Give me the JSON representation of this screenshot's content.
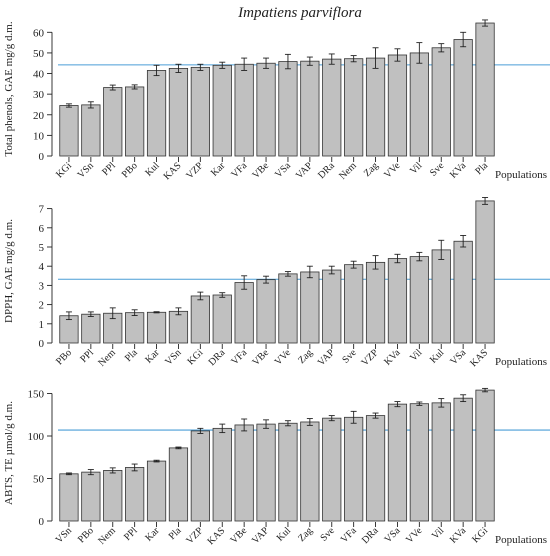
{
  "title": "Impatiens parviflora",
  "chart_data": [
    {
      "type": "bar",
      "ylabel": "Total phenols, GAE mg/g d.m.",
      "xlabel": "Populations",
      "ylim": [
        0,
        65
      ],
      "yticks": [
        0,
        10,
        20,
        30,
        40,
        50,
        60
      ],
      "reference_line": 44.2,
      "categories": [
        "KGi",
        "VSn",
        "PPl",
        "PBo",
        "Kul",
        "KAS",
        "VZP",
        "Kar",
        "VFa",
        "VBe",
        "VSa",
        "VAP",
        "DRa",
        "Nem",
        "Zag",
        "VVe",
        "Vil",
        "Sve",
        "KVa",
        "Pla"
      ],
      "values": [
        24.5,
        24.8,
        33.2,
        33.5,
        41.5,
        42.5,
        43,
        44,
        44.5,
        45,
        45.8,
        46,
        47,
        47.2,
        47.5,
        49,
        50,
        52.5,
        56.5,
        64.5
      ],
      "errors": [
        0.8,
        1.5,
        1.2,
        1.0,
        2.5,
        2.0,
        1.5,
        1.5,
        3.0,
        2.5,
        3.5,
        2.0,
        2.5,
        1.5,
        5.0,
        3.0,
        5.0,
        2.0,
        3.5,
        1.5
      ]
    },
    {
      "type": "bar",
      "ylabel": "DPPH, GAE mg/g d.m.",
      "xlabel": "Populations",
      "ylim": [
        0,
        7.5
      ],
      "yticks": [
        0,
        1,
        2,
        3,
        4,
        5,
        6,
        7
      ],
      "reference_line": 3.32,
      "categories": [
        "PBo",
        "PPl",
        "Nem",
        "Pla",
        "Kar",
        "VSn",
        "KGi",
        "DRa",
        "VFa",
        "VBe",
        "VVe",
        "Zag",
        "VAP",
        "Sve",
        "VZP",
        "KVa",
        "Vil",
        "Kul",
        "VSa",
        "KAS"
      ],
      "values": [
        1.42,
        1.5,
        1.55,
        1.58,
        1.6,
        1.65,
        2.45,
        2.5,
        3.15,
        3.3,
        3.6,
        3.7,
        3.8,
        4.08,
        4.2,
        4.4,
        4.5,
        4.85,
        5.3,
        7.4
      ],
      "errors": [
        0.2,
        0.12,
        0.28,
        0.15,
        0.03,
        0.18,
        0.2,
        0.12,
        0.35,
        0.18,
        0.12,
        0.3,
        0.2,
        0.18,
        0.35,
        0.22,
        0.22,
        0.5,
        0.3,
        0.18
      ]
    },
    {
      "type": "bar",
      "ylabel": "ABTS, TE µmol/g d.m.",
      "xlabel": "Populations",
      "ylim": [
        0,
        160
      ],
      "yticks": [
        0,
        50,
        100,
        150
      ],
      "reference_line": 107,
      "categories": [
        "VSn",
        "PBo",
        "Nem",
        "PPl",
        "Kar",
        "Pla",
        "VZP",
        "KAS",
        "VBe",
        "VAP",
        "Kul",
        "Zag",
        "Sve",
        "VFa",
        "DRa",
        "VSa",
        "VVe",
        "Vil",
        "KVa",
        "KGi"
      ],
      "values": [
        55.5,
        57.5,
        59.5,
        63,
        70.5,
        86,
        106,
        109,
        113,
        114,
        115,
        116.5,
        121,
        122,
        124,
        137.5,
        138,
        139,
        144.5,
        154
      ],
      "errors": [
        1.0,
        3.0,
        3.0,
        4.0,
        1.0,
        1.0,
        3.0,
        5.0,
        7.0,
        5.0,
        3.0,
        4.0,
        3.0,
        7.0,
        3.0,
        3.0,
        2.0,
        5.0,
        4.0,
        2.0
      ]
    }
  ],
  "colors": {
    "bar_fill": "#c0c0c0",
    "bar_stroke": "#333333",
    "reference_line": "#4a9ed6",
    "axis": "#222222"
  }
}
